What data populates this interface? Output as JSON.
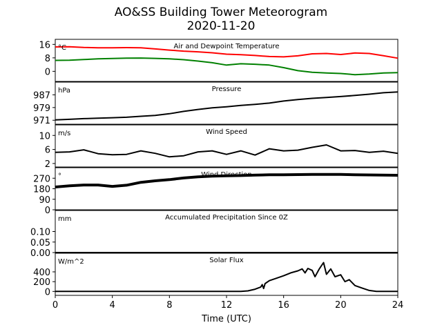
{
  "title_line1": "AO&SS Building Tower Meteorogram",
  "title_line2": "2020-11-20",
  "xlabel": "Time (UTC)",
  "x_ticks": [
    "0",
    "4",
    "8",
    "12",
    "16",
    "20",
    "24"
  ],
  "colors": {
    "temperature": "#ff0000",
    "dewpoint": "#008000",
    "other": "#000000"
  },
  "chart_data": [
    {
      "type": "line",
      "id": "temp",
      "title": "Air and Dewpoint Temperature",
      "unit": "°C",
      "ylim": [
        -6,
        19
      ],
      "yticks": [
        16,
        8,
        0
      ],
      "series": [
        {
          "name": "",
          "color": "#ff0000",
          "x": [
            0,
            1,
            2,
            3,
            4,
            5,
            6,
            7,
            8,
            9,
            10,
            11,
            12,
            13,
            14,
            15,
            16,
            17,
            18,
            19,
            20,
            21,
            22,
            23,
            24
          ],
          "y": [
            14.5,
            14.6,
            14.2,
            14.0,
            14.0,
            14.1,
            14.0,
            13.3,
            12.6,
            12.0,
            11.6,
            11.0,
            10.2,
            9.9,
            9.4,
            8.8,
            8.6,
            9.2,
            10.4,
            10.6,
            10.0,
            10.9,
            10.6,
            9.3,
            7.8
          ]
        },
        {
          "name": "",
          "color": "#008000",
          "x": [
            0,
            1,
            2,
            3,
            4,
            5,
            6,
            7,
            8,
            9,
            10,
            11,
            12,
            13,
            14,
            15,
            16,
            17,
            18,
            19,
            20,
            21,
            22,
            23,
            24
          ],
          "y": [
            6.5,
            6.6,
            7.0,
            7.4,
            7.6,
            7.8,
            7.9,
            7.7,
            7.4,
            6.9,
            6.1,
            5.1,
            3.7,
            4.5,
            4.2,
            3.7,
            2.2,
            0.4,
            -0.6,
            -1.0,
            -1.3,
            -2.0,
            -1.6,
            -1.0,
            -0.8
          ]
        }
      ]
    },
    {
      "type": "line",
      "id": "pres",
      "title": "Pressure",
      "unit": "hPa",
      "ylim": [
        968.5,
        995
      ],
      "yticks": [
        987,
        979,
        971
      ],
      "series": [
        {
          "name": "",
          "color": "#000000",
          "x": [
            0,
            1,
            2,
            3,
            4,
            5,
            6,
            7,
            8,
            9,
            10,
            11,
            12,
            13,
            14,
            15,
            16,
            17,
            18,
            19,
            20,
            21,
            22,
            23,
            24
          ],
          "y": [
            971.2,
            971.6,
            972.0,
            972.3,
            972.6,
            972.9,
            973.5,
            974.0,
            975.1,
            976.6,
            977.8,
            978.8,
            979.5,
            980.3,
            981.0,
            981.8,
            983.1,
            984.0,
            984.8,
            985.3,
            985.9,
            986.6,
            987.4,
            988.3,
            988.8
          ]
        }
      ]
    },
    {
      "type": "line",
      "id": "wind",
      "title": "Wind Speed",
      "unit": "m/s",
      "ylim": [
        1,
        13
      ],
      "yticks": [
        10,
        6,
        2
      ],
      "series": [
        {
          "name": "",
          "color": "#000000",
          "x": [
            0,
            1,
            2,
            3,
            4,
            5,
            6,
            7,
            8,
            9,
            10,
            11,
            12,
            13,
            14,
            15,
            16,
            17,
            18,
            19,
            20,
            21,
            22,
            23,
            24
          ],
          "y": [
            5.2,
            5.3,
            5.9,
            4.8,
            4.5,
            4.6,
            5.6,
            4.9,
            3.9,
            4.2,
            5.3,
            5.6,
            4.6,
            5.6,
            4.4,
            6.2,
            5.6,
            5.8,
            6.6,
            7.3,
            5.6,
            5.7,
            5.2,
            5.5,
            4.9
          ]
        }
      ]
    },
    {
      "type": "scatter",
      "id": "wdir",
      "title": "Wind Direction",
      "unit": "°",
      "ylim": [
        0,
        360
      ],
      "yticks": [
        270,
        180,
        90,
        0
      ],
      "series": [
        {
          "name": "",
          "color": "#000000",
          "x": [
            0,
            1,
            2,
            3,
            4,
            5,
            6,
            7,
            8,
            9,
            10,
            11,
            12,
            13,
            14,
            15,
            16,
            17,
            18,
            19,
            20,
            21,
            22,
            23,
            24
          ],
          "y": [
            195,
            205,
            212,
            212,
            200,
            210,
            235,
            248,
            258,
            272,
            282,
            288,
            291,
            293,
            297,
            299,
            300,
            301,
            302,
            303,
            302,
            300,
            298,
            296,
            295
          ]
        }
      ]
    },
    {
      "type": "line",
      "id": "precip",
      "title": "Accumulated Precipitation Since 0Z",
      "unit": "mm",
      "ylim": [
        0,
        0.2
      ],
      "yticks": [
        0.1,
        0.05,
        0.0
      ],
      "series": [
        {
          "name": "",
          "color": "#000000",
          "x": [
            0,
            24
          ],
          "y": [
            0,
            0
          ]
        }
      ]
    },
    {
      "type": "line",
      "id": "solar",
      "title": "Solar Flux",
      "unit": "W/m^2",
      "ylim": [
        -80,
        780
      ],
      "yticks": [
        400,
        200,
        0
      ],
      "series": [
        {
          "name": "",
          "color": "#000000",
          "x": [
            0,
            13,
            13.5,
            14,
            14.4,
            14.5,
            14.6,
            14.7,
            15,
            15.5,
            16,
            16.5,
            17,
            17.3,
            17.5,
            17.7,
            18,
            18.2,
            18.5,
            18.8,
            19,
            19.3,
            19.6,
            20,
            20.3,
            20.6,
            21,
            21.5,
            22,
            22.5,
            24
          ],
          "y": [
            0,
            0,
            12,
            45,
            90,
            140,
            60,
            160,
            220,
            270,
            320,
            380,
            420,
            460,
            380,
            470,
            430,
            300,
            460,
            590,
            350,
            460,
            300,
            340,
            200,
            240,
            120,
            70,
            20,
            0,
            0
          ]
        }
      ]
    }
  ]
}
